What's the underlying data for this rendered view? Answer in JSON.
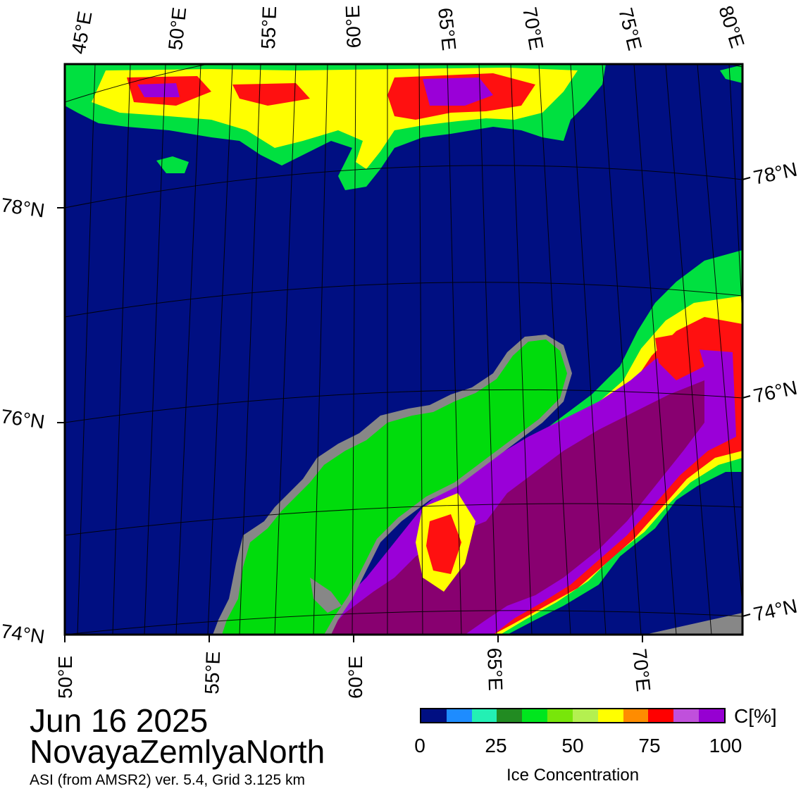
{
  "map": {
    "top_lon_labels": [
      "45°E",
      "50°E",
      "55°E",
      "60°E",
      "65°E",
      "70°E",
      "75°E",
      "80°E"
    ],
    "bottom_lon_labels": [
      "50°E",
      "55°E",
      "60°E",
      "65°E",
      "70°E"
    ],
    "left_lat_labels": [
      "78°N",
      "76°N",
      "74°N"
    ],
    "right_lat_labels": [
      "78°N",
      "76°N",
      "74°N"
    ],
    "colors": {
      "water": "#000f82",
      "land": "#00dc0c",
      "land_edge": "#878787",
      "ice_high": "#880070",
      "ice_purple": "#9a00d8",
      "ice_red": "#ff1010",
      "ice_yellow": "#ffff00",
      "ice_green": "#00e040"
    }
  },
  "title": {
    "date": "Jun 16 2025",
    "region": "NovayaZemlyaNorth",
    "source": "ASI (from AMSR2) ver. 5.4,  Grid 3.125 km"
  },
  "legend": {
    "unit": "C[%]",
    "title": "Ice Concentration",
    "ticks": [
      "0",
      "25",
      "50",
      "75",
      "100"
    ],
    "colors": [
      "#000f82",
      "#1e8cff",
      "#23f0b4",
      "#228b22",
      "#00e61e",
      "#78e60a",
      "#b4f050",
      "#ffff00",
      "#ff8c00",
      "#ff0000",
      "#c050dc",
      "#9600d2"
    ]
  }
}
